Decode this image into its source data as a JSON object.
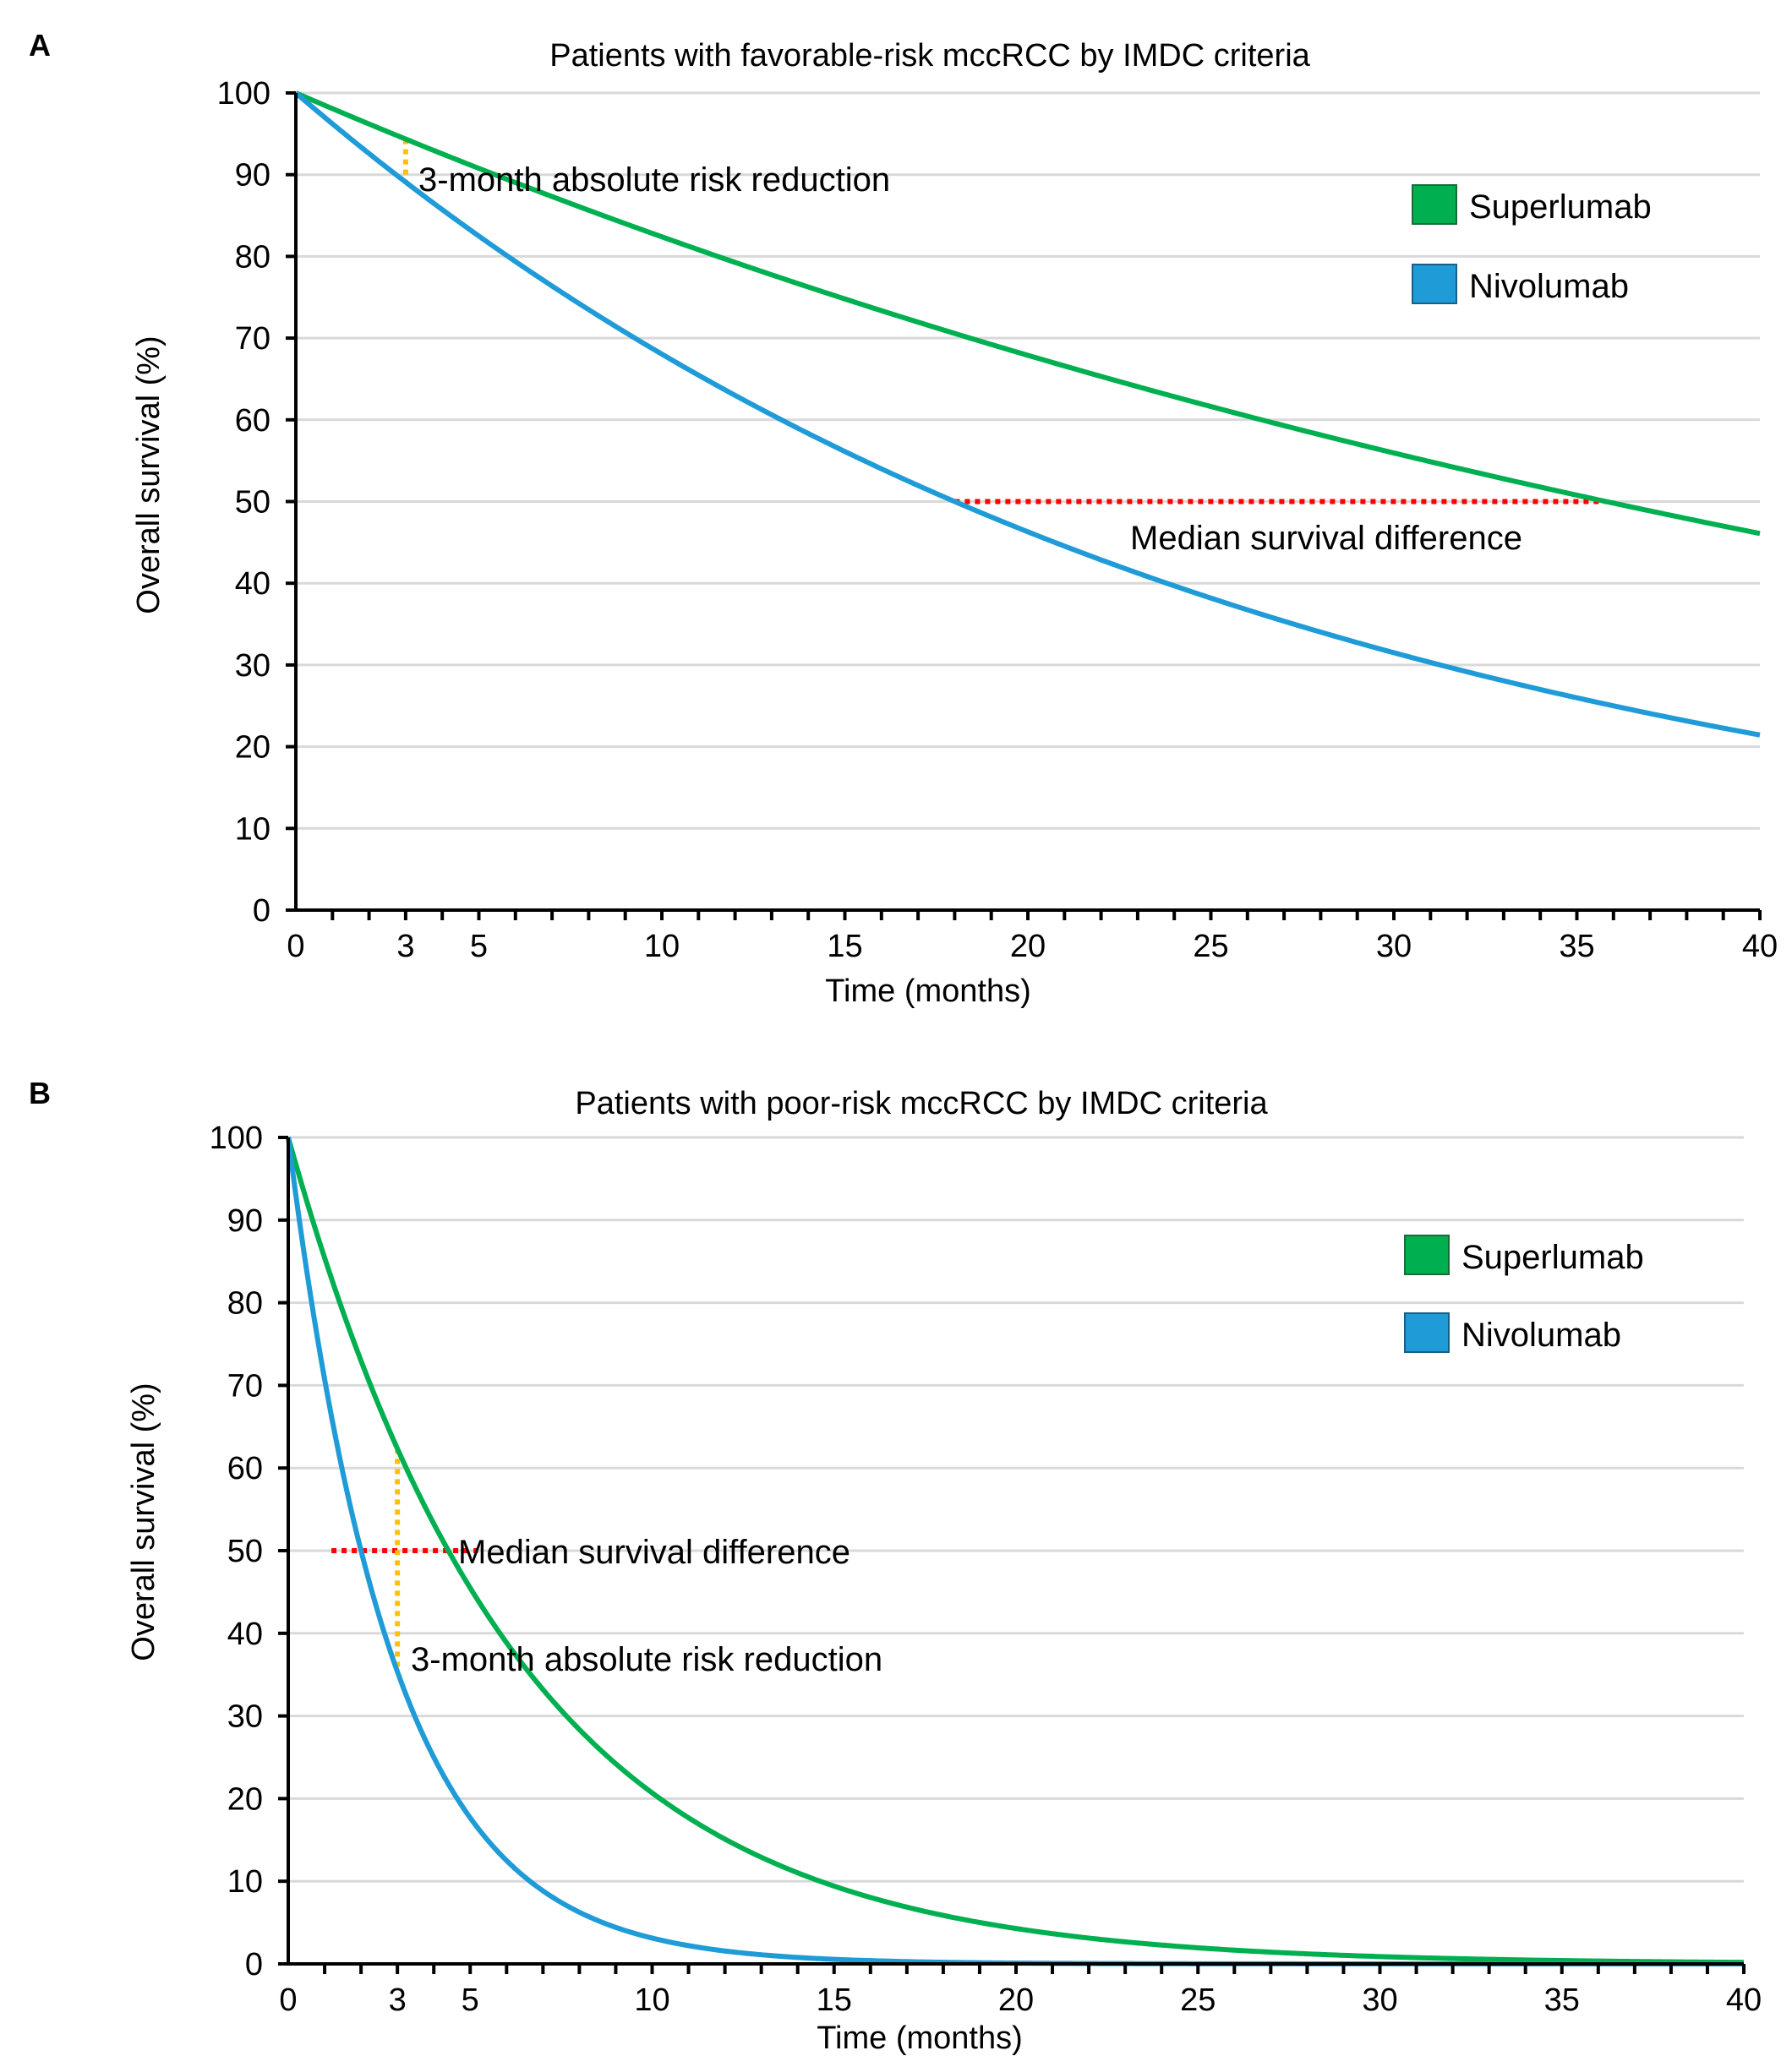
{
  "chart_data": [
    {
      "panel": "A",
      "type": "line",
      "title": "Patients with favorable-risk mccRCC by IMDC criteria",
      "xlabel": "Time (months)",
      "ylabel": "Overall survival (%)",
      "xlim": [
        0,
        40
      ],
      "ylim": [
        0,
        100
      ],
      "xticks": [
        "0",
        "3",
        "5",
        "10",
        "15",
        "20",
        "25",
        "30",
        "35",
        "40"
      ],
      "xtick_values": [
        0,
        3,
        5,
        10,
        15,
        20,
        25,
        30,
        35,
        40
      ],
      "highlight_tick": "3",
      "yticks": [
        0,
        10,
        20,
        30,
        40,
        50,
        60,
        70,
        80,
        90,
        100
      ],
      "grid": true,
      "legend_position": "top-right",
      "series": [
        {
          "name": "Superlumab",
          "color": "#00b050",
          "median_months": 35.8
        },
        {
          "name": "Nivolumab",
          "color": "#1f9bd7",
          "median_months": 18
        }
      ],
      "annotations": {
        "risk_reduction_label": "3-month  absolute  risk reduction",
        "median_label": "Median  survival  difference"
      }
    },
    {
      "panel": "B",
      "type": "line",
      "title": "Patients with poor-risk mccRCC by IMDC criteria",
      "xlabel": "Time (months)",
      "ylabel": "Overall survival (%)",
      "xlim": [
        0,
        40
      ],
      "ylim": [
        0,
        100
      ],
      "xticks": [
        "0",
        "3",
        "5",
        "10",
        "15",
        "20",
        "25",
        "30",
        "35",
        "40"
      ],
      "xtick_values": [
        0,
        3,
        5,
        10,
        15,
        20,
        25,
        30,
        35,
        40
      ],
      "highlight_tick": "3",
      "yticks": [
        0,
        10,
        20,
        30,
        40,
        50,
        60,
        70,
        80,
        90,
        100
      ],
      "grid": true,
      "legend_position": "top-right",
      "series": [
        {
          "name": "Superlumab",
          "color": "#00b050",
          "median_months": 4.4
        },
        {
          "name": "Nivolumab",
          "color": "#1f9bd7",
          "median_months": 2
        }
      ],
      "annotations": {
        "risk_reduction_label": "3-month  absolute  risk reduction",
        "median_label": "Median  survival  difference"
      }
    }
  ],
  "colors": {
    "superlumab": "#00b050",
    "nivolumab": "#1f9bd7",
    "median_line": "#ff0000",
    "risk_line": "#ffc000",
    "highlight_tick": "#ff0000"
  }
}
